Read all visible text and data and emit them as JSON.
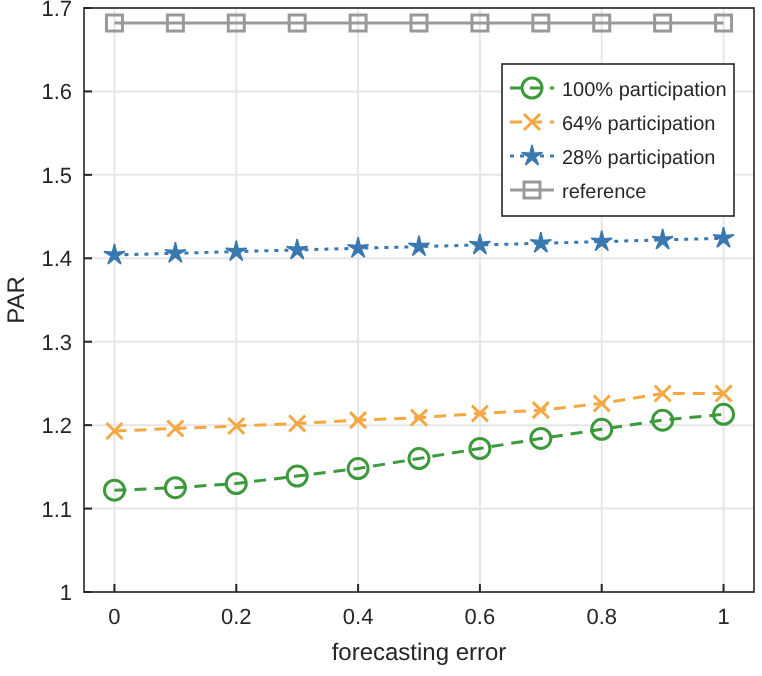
{
  "chart_data": {
    "type": "line",
    "xlabel": "forecasting error",
    "ylabel": "PAR",
    "x": [
      0,
      0.1,
      0.2,
      0.3,
      0.4,
      0.5,
      0.6,
      0.7,
      0.8,
      0.9,
      1
    ],
    "series": [
      {
        "name": "100% participation",
        "color": "#3c9a3c",
        "marker": "circle",
        "line_style": "dashed",
        "values": [
          1.122,
          1.125,
          1.13,
          1.139,
          1.148,
          1.16,
          1.172,
          1.184,
          1.195,
          1.206,
          1.213
        ]
      },
      {
        "name": "64% participation",
        "color": "#f5a742",
        "marker": "cross",
        "line_style": "dashed",
        "values": [
          1.193,
          1.196,
          1.199,
          1.202,
          1.206,
          1.209,
          1.214,
          1.218,
          1.226,
          1.238,
          1.238
        ]
      },
      {
        "name": "28% participation",
        "color": "#3a78b0",
        "marker": "star",
        "line_style": "dotted",
        "values": [
          1.404,
          1.406,
          1.408,
          1.41,
          1.412,
          1.414,
          1.416,
          1.418,
          1.42,
          1.422,
          1.424
        ]
      },
      {
        "name": "reference",
        "color": "#999999",
        "marker": "square",
        "line_style": "solid",
        "values": [
          1.682,
          1.682,
          1.682,
          1.682,
          1.682,
          1.682,
          1.682,
          1.682,
          1.682,
          1.682,
          1.682
        ]
      }
    ],
    "xlim": [
      -0.05,
      1.05
    ],
    "xticks": [
      0,
      0.2,
      0.4,
      0.6,
      0.8,
      1
    ],
    "ylim": [
      1,
      1.7
    ],
    "yticks": [
      1,
      1.1,
      1.2,
      1.3,
      1.4,
      1.5,
      1.6,
      1.7
    ],
    "grid": true,
    "legend": "top right"
  }
}
